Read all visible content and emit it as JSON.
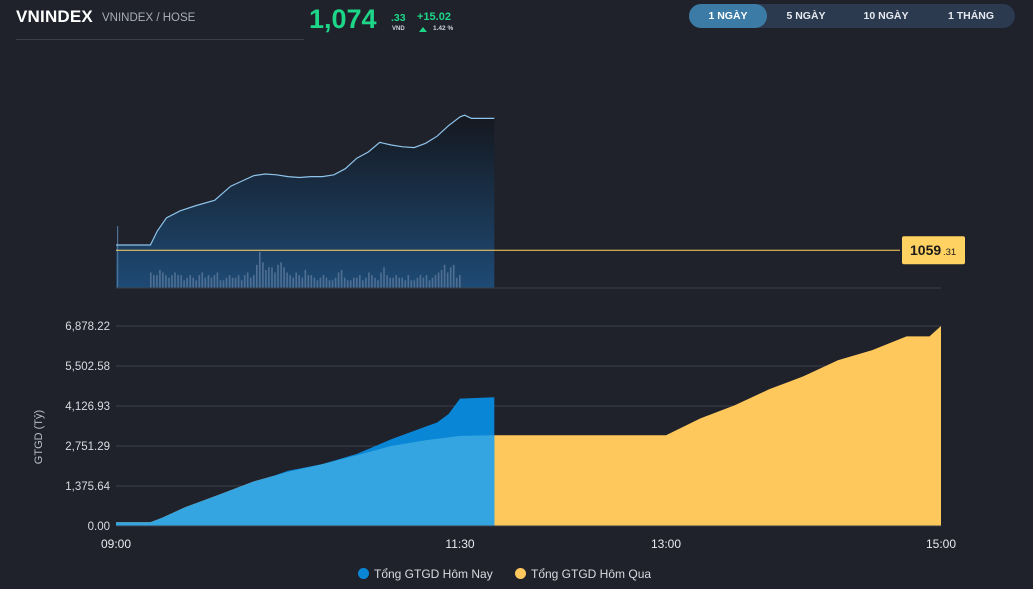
{
  "header": {
    "symbol": "VNINDEX",
    "exchange": "VNINDEX / HOSE",
    "price_int": "1,074",
    "price_dec": ".33",
    "currency": "VND",
    "change": "+15.02",
    "change_pct": "1.42 %",
    "up_color": "#1ed688"
  },
  "periods": [
    {
      "label": "1 NGÀY",
      "active": true
    },
    {
      "label": "5 NGÀY",
      "active": false
    },
    {
      "label": "10 NGÀY",
      "active": false
    },
    {
      "label": "1 THÁNG",
      "active": false
    }
  ],
  "chart_data": [
    {
      "type": "area",
      "title": "",
      "x_range": [
        "09:00",
        "15:00"
      ],
      "y_range": [
        1055,
        1077
      ],
      "reference_line": {
        "int": "1059",
        "dec": ".31",
        "value": 1059.31,
        "color": "#ffd261"
      },
      "series": [
        {
          "x": [
            "09:00",
            "09:15",
            "09:18",
            "09:22",
            "09:28",
            "09:35",
            "09:43",
            "09:50",
            "09:55",
            "10:00",
            "10:05",
            "10:10",
            "10:15",
            "10:20",
            "10:25",
            "10:30",
            "10:35",
            "10:40",
            "10:45",
            "10:50",
            "10:55",
            "11:00",
            "11:05",
            "11:10",
            "11:15",
            "11:20",
            "11:25",
            "11:30",
            "11:32",
            "11:35",
            "11:45"
          ],
          "values": [
            1059.9,
            1059.9,
            1061.5,
            1063.0,
            1063.8,
            1064.4,
            1065.0,
            1066.6,
            1067.2,
            1067.8,
            1068.0,
            1067.9,
            1067.7,
            1067.6,
            1067.7,
            1067.7,
            1067.9,
            1068.6,
            1069.8,
            1070.5,
            1071.6,
            1071.3,
            1071.1,
            1071.0,
            1071.5,
            1072.3,
            1073.5,
            1074.5,
            1074.7,
            1074.33,
            1074.33
          ],
          "color": "#8fc3ea"
        }
      ],
      "volume_bars": [
        24,
        6,
        5,
        5,
        7,
        6,
        5,
        4,
        5,
        6,
        5,
        5,
        3,
        4,
        5,
        4,
        3,
        5,
        6,
        4,
        5,
        4,
        5,
        6,
        3,
        3,
        4,
        5,
        4,
        4,
        5,
        3,
        5,
        6,
        4,
        5,
        9,
        14,
        10,
        7,
        8,
        8,
        6,
        9,
        10,
        8,
        6,
        5,
        4,
        6,
        5,
        4,
        7,
        5,
        5,
        4,
        3,
        4,
        5,
        4,
        3,
        3,
        4,
        6,
        7,
        4,
        3,
        3,
        4,
        4,
        5,
        3,
        4,
        6,
        5,
        4,
        3,
        6,
        8,
        5,
        4,
        4,
        5,
        4,
        4,
        3,
        5,
        3,
        3,
        4,
        5,
        4,
        5,
        3,
        4,
        5,
        6,
        7,
        9,
        6,
        8,
        9,
        4,
        5
      ]
    },
    {
      "type": "area",
      "ylabel": "GTGD (Tỷ)",
      "x_ticks": [
        "09:00",
        "11:30",
        "13:00",
        "15:00"
      ],
      "y_ticks": [
        "0.00",
        "1,375.64",
        "2,751.29",
        "4,126.93",
        "5,502.58",
        "6,878.22"
      ],
      "ylim": [
        0,
        6878.22
      ],
      "series": [
        {
          "name": "Tổng GTGD Hôm Nay",
          "color": "#0a86d6",
          "x": [
            "09:00",
            "09:15",
            "09:20",
            "09:30",
            "09:45",
            "10:00",
            "10:15",
            "10:30",
            "10:45",
            "11:00",
            "11:15",
            "11:20",
            "11:25",
            "11:30",
            "11:45"
          ],
          "values": [
            110,
            110,
            280,
            620,
            1010,
            1480,
            1900,
            2130,
            2480,
            2980,
            3420,
            3560,
            3850,
            4380,
            4430
          ]
        },
        {
          "name": "Tổng GTGD Hôm Qua",
          "color": "#ffc85c",
          "x": [
            "09:00",
            "09:15",
            "09:20",
            "09:30",
            "09:45",
            "10:00",
            "10:15",
            "10:30",
            "10:45",
            "11:00",
            "11:15",
            "11:30",
            "11:45",
            "12:00",
            "12:30",
            "13:00",
            "13:15",
            "13:30",
            "13:45",
            "14:00",
            "14:15",
            "14:30",
            "14:45",
            "14:55",
            "15:00"
          ],
          "values": [
            130,
            130,
            280,
            640,
            1080,
            1530,
            1860,
            2130,
            2430,
            2750,
            2950,
            3100,
            3120,
            3120,
            3120,
            3120,
            3700,
            4150,
            4700,
            5150,
            5700,
            6050,
            6520,
            6520,
            6878
          ]
        }
      ]
    }
  ]
}
